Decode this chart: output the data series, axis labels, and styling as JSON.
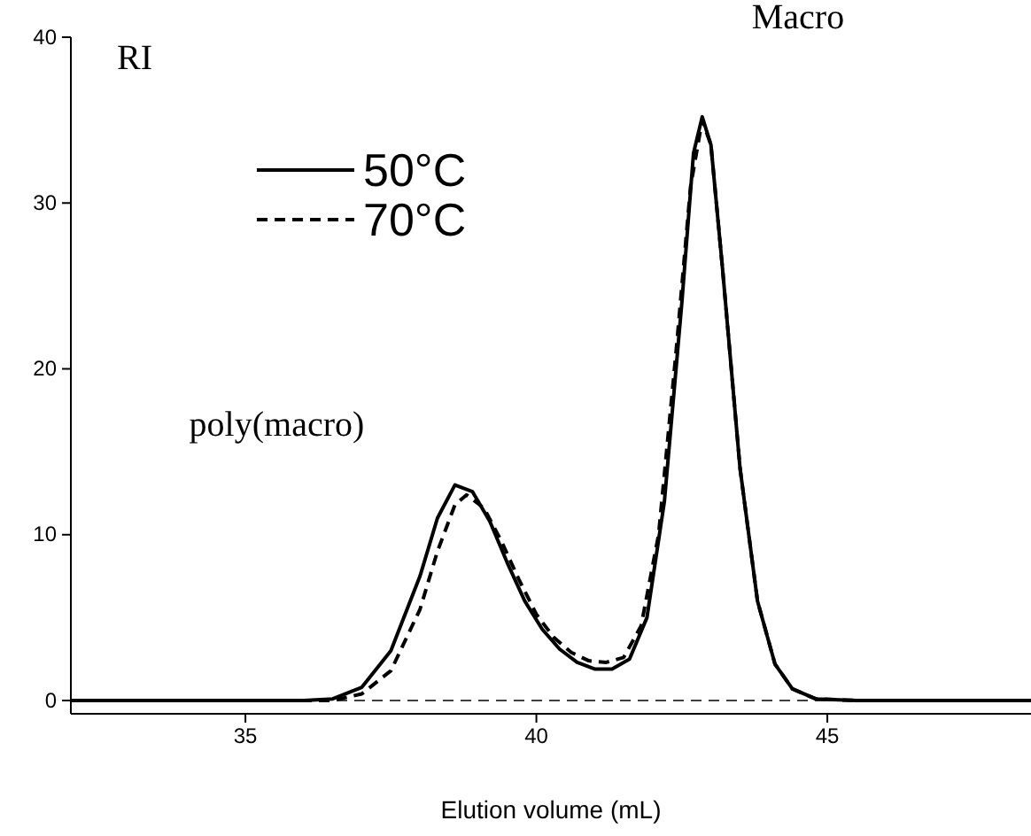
{
  "chart_data": {
    "type": "line",
    "xlabel": "Elution volume (mL)",
    "xlim": [
      32,
      48.5
    ],
    "xticks": [
      35,
      40,
      45
    ],
    "ylim": [
      -0.8,
      40
    ],
    "yticks": [
      0,
      10,
      20,
      30,
      40
    ],
    "legend": "top left",
    "grid": false,
    "annotations": [
      {
        "text": "RI"
      },
      {
        "text": "poly(macro)",
        "x": 38.6,
        "y": 13
      },
      {
        "text": "Macro",
        "x": 42.85,
        "y": 35.2
      }
    ],
    "ref_lines": [
      {
        "axis": "y",
        "value": 0,
        "line_style": "dashed",
        "color": "#000000"
      }
    ],
    "series": [
      {
        "name": "50°C",
        "color": "#000000",
        "line_style": "solid",
        "x": [
          32,
          36,
          36.5,
          37,
          37.5,
          38,
          38.3,
          38.6,
          38.9,
          39.2,
          39.5,
          39.8,
          40.1,
          40.4,
          40.7,
          41,
          41.3,
          41.6,
          41.9,
          42.2,
          42.5,
          42.7,
          42.85,
          43,
          43.2,
          43.5,
          43.8,
          44.1,
          44.4,
          44.8,
          45.5,
          48.5
        ],
        "values": [
          0,
          0,
          0.1,
          0.8,
          3,
          7.5,
          11,
          13,
          12.6,
          10.8,
          8.3,
          6,
          4.3,
          3.1,
          2.3,
          1.9,
          1.9,
          2.5,
          5,
          12,
          24,
          33,
          35.2,
          33.5,
          26,
          14,
          6,
          2.2,
          0.7,
          0.1,
          0,
          0
        ]
      },
      {
        "name": "70°C",
        "color": "#000000",
        "line_style": "dashed",
        "x": [
          32,
          36.5,
          37,
          37.5,
          38,
          38.3,
          38.6,
          38.8,
          39.1,
          39.4,
          39.7,
          40,
          40.3,
          40.6,
          40.9,
          41.2,
          41.5,
          41.8,
          42.1,
          42.4,
          42.65,
          42.85,
          43,
          43.2,
          43.5,
          43.8,
          44.1,
          44.4,
          44.8,
          45.5,
          48.5
        ],
        "values": [
          0,
          0,
          0.4,
          1.8,
          5.5,
          9,
          11.8,
          12.4,
          11.6,
          9.6,
          7.3,
          5.2,
          3.8,
          2.9,
          2.4,
          2.3,
          2.6,
          4.5,
          10,
          21,
          31,
          35,
          33.5,
          26,
          14,
          6,
          2.2,
          0.7,
          0.1,
          0,
          0
        ]
      }
    ]
  }
}
